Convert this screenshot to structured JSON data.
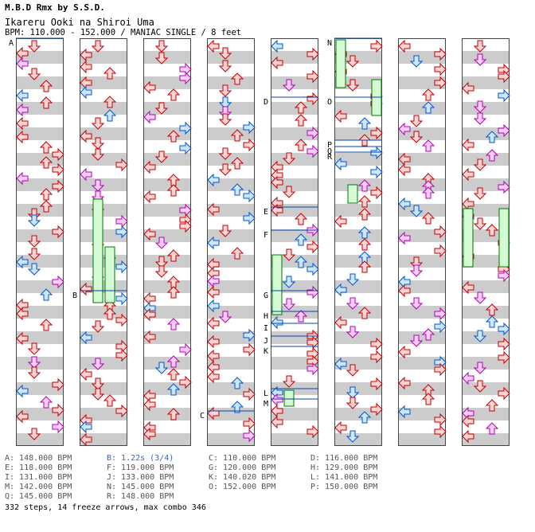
{
  "header": {
    "line1": "M.B.D Rmx by S.S.D.",
    "line2": "Ikareru Ooki na Shiroi Uma",
    "line3": "BPM: 110.000 - 152.000 / MANIAC SINGLE / 8 feet"
  },
  "columns": 8,
  "markers": [
    {
      "label": "A",
      "col": 0,
      "pos": 0.0
    },
    {
      "label": "B",
      "col": 1,
      "pos": 0.62
    },
    {
      "label": "C",
      "col": 3,
      "pos": 0.915
    },
    {
      "label": "D",
      "col": 4,
      "pos": 0.145
    },
    {
      "label": "E",
      "col": 4,
      "pos": 0.415
    },
    {
      "label": "F",
      "col": 4,
      "pos": 0.47
    },
    {
      "label": "G",
      "col": 4,
      "pos": 0.62
    },
    {
      "label": "H",
      "col": 4,
      "pos": 0.67
    },
    {
      "label": "I",
      "col": 4,
      "pos": 0.7
    },
    {
      "label": "J",
      "col": 4,
      "pos": 0.73
    },
    {
      "label": "K",
      "col": 4,
      "pos": 0.755
    },
    {
      "label": "L",
      "col": 4,
      "pos": 0.86
    },
    {
      "label": "M",
      "col": 4,
      "pos": 0.885
    },
    {
      "label": "N",
      "col": 5,
      "pos": 0.0
    },
    {
      "label": "O",
      "col": 5,
      "pos": 0.145
    },
    {
      "label": "P",
      "col": 5,
      "pos": 0.25
    },
    {
      "label": "Q",
      "col": 5,
      "pos": 0.265
    },
    {
      "label": "R",
      "col": 5,
      "pos": 0.28
    }
  ],
  "legend": [
    {
      "text": "A: 148.000 BPM",
      "highlight": false
    },
    {
      "text": "B: 1.22s (3/4)",
      "highlight": true
    },
    {
      "text": "C: 110.000 BPM",
      "highlight": false
    },
    {
      "text": "D: 116.000 BPM",
      "highlight": false
    },
    {
      "text": "E: 118.000 BPM",
      "highlight": false
    },
    {
      "text": "F: 119.000 BPM",
      "highlight": false
    },
    {
      "text": "G: 120.000 BPM",
      "highlight": false
    },
    {
      "text": "H: 129.000 BPM",
      "highlight": false
    },
    {
      "text": "I: 131.000 BPM",
      "highlight": false
    },
    {
      "text": "J: 133.000 BPM",
      "highlight": false
    },
    {
      "text": "K: 140.020 BPM",
      "highlight": false
    },
    {
      "text": "L: 141.000 BPM",
      "highlight": false
    },
    {
      "text": "M: 142.000 BPM",
      "highlight": false
    },
    {
      "text": "N: 145.000 BPM",
      "highlight": false
    },
    {
      "text": "O: 152.000 BPM",
      "highlight": false
    },
    {
      "text": "P: 150.000 BPM",
      "highlight": false
    },
    {
      "text": "Q: 145.000 BPM",
      "highlight": false
    },
    {
      "text": "R: 148.000 BPM",
      "highlight": false
    }
  ],
  "summary": "332 steps, 14 freeze arrows, max combo 346",
  "colors": {
    "stripe": "#cccccc",
    "bpm_line": "#0044aa",
    "arrow_4th": "#c00000",
    "arrow_8th": "#0055cc",
    "arrow_16th": "#b000b0",
    "freeze": "#007700"
  }
}
